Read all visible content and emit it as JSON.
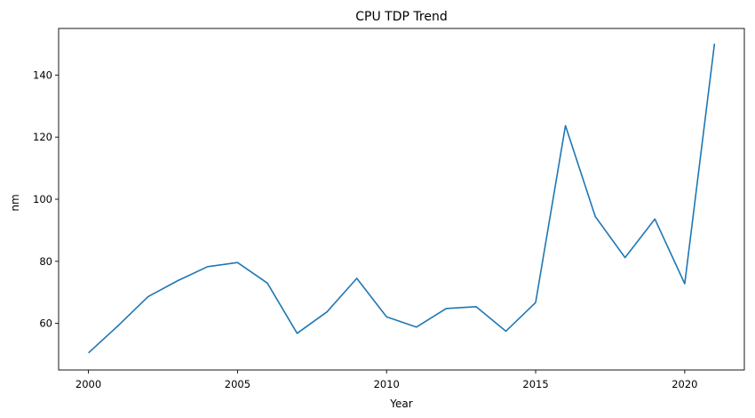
{
  "chart_data": {
    "type": "line",
    "title": "CPU TDP Trend",
    "xlabel": "Year",
    "ylabel": "nm",
    "xlim": [
      1999.0,
      2022.0
    ],
    "ylim": [
      45.0,
      155.0
    ],
    "xticks": [
      2000,
      2005,
      2010,
      2015,
      2020
    ],
    "yticks": [
      60,
      80,
      100,
      120,
      140
    ],
    "grid": false,
    "line_color": "#1f77b4",
    "series": [
      {
        "x": [
          2000,
          2001,
          2002,
          2003,
          2004,
          2005,
          2006,
          2007,
          2008,
          2009,
          2010,
          2011,
          2012,
          2013,
          2014,
          2015,
          2016,
          2017,
          2018,
          2019,
          2020,
          2021
        ],
        "values": [
          50.5,
          59.3,
          68.6,
          73.8,
          78.3,
          79.6,
          73.0,
          56.8,
          63.7,
          74.5,
          62.1,
          58.8,
          64.8,
          65.4,
          57.5,
          66.7,
          123.7,
          94.4,
          81.2,
          93.6,
          72.8,
          150.1
        ]
      }
    ]
  }
}
